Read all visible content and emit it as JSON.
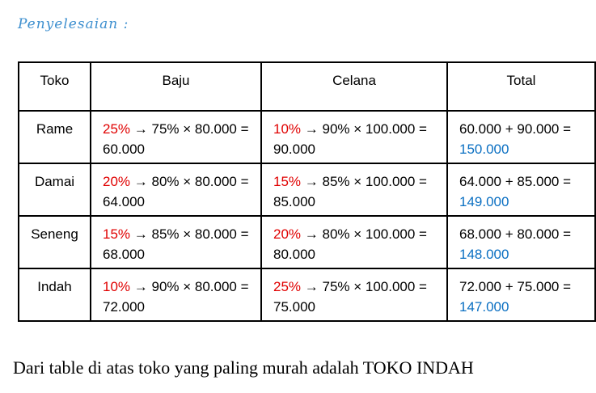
{
  "heading": "Penyelesaian :",
  "table": {
    "header": [
      "Toko",
      "Baju",
      "Celana",
      "Total"
    ],
    "rows": [
      {
        "toko": "Rame",
        "baju": {
          "discount": "25%",
          "calc": "→ 75% × 80.000 = 60.000"
        },
        "celana": {
          "discount": "10%",
          "calc": "→ 90% × 100.000 = 90.000"
        },
        "total": {
          "sum": "60.000 + 90.000 =",
          "result": "150.000"
        }
      },
      {
        "toko": "Damai",
        "baju": {
          "discount": "20%",
          "calc": "→ 80% × 80.000 = 64.000"
        },
        "celana": {
          "discount": "15%",
          "calc": "→ 85% × 100.000 = 85.000"
        },
        "total": {
          "sum": "64.000 + 85.000 =",
          "result": "149.000"
        }
      },
      {
        "toko": "Seneng",
        "baju": {
          "discount": "15%",
          "calc": "→ 85% × 80.000 = 68.000"
        },
        "celana": {
          "discount": "20%",
          "calc": "→ 80% × 100.000 = 80.000"
        },
        "total": {
          "sum": "68.000 + 80.000 =",
          "result": "148.000"
        }
      },
      {
        "toko": "Indah",
        "baju": {
          "discount": "10%",
          "calc": "→ 90% × 80.000 = 72.000"
        },
        "celana": {
          "discount": "25%",
          "calc": "→ 75% × 100.000 = 75.000"
        },
        "total": {
          "sum": "72.000 + 75.000 =",
          "result": "147.000"
        }
      }
    ]
  },
  "conclusion": "Dari table di atas toko yang paling murah adalah TOKO INDAH"
}
